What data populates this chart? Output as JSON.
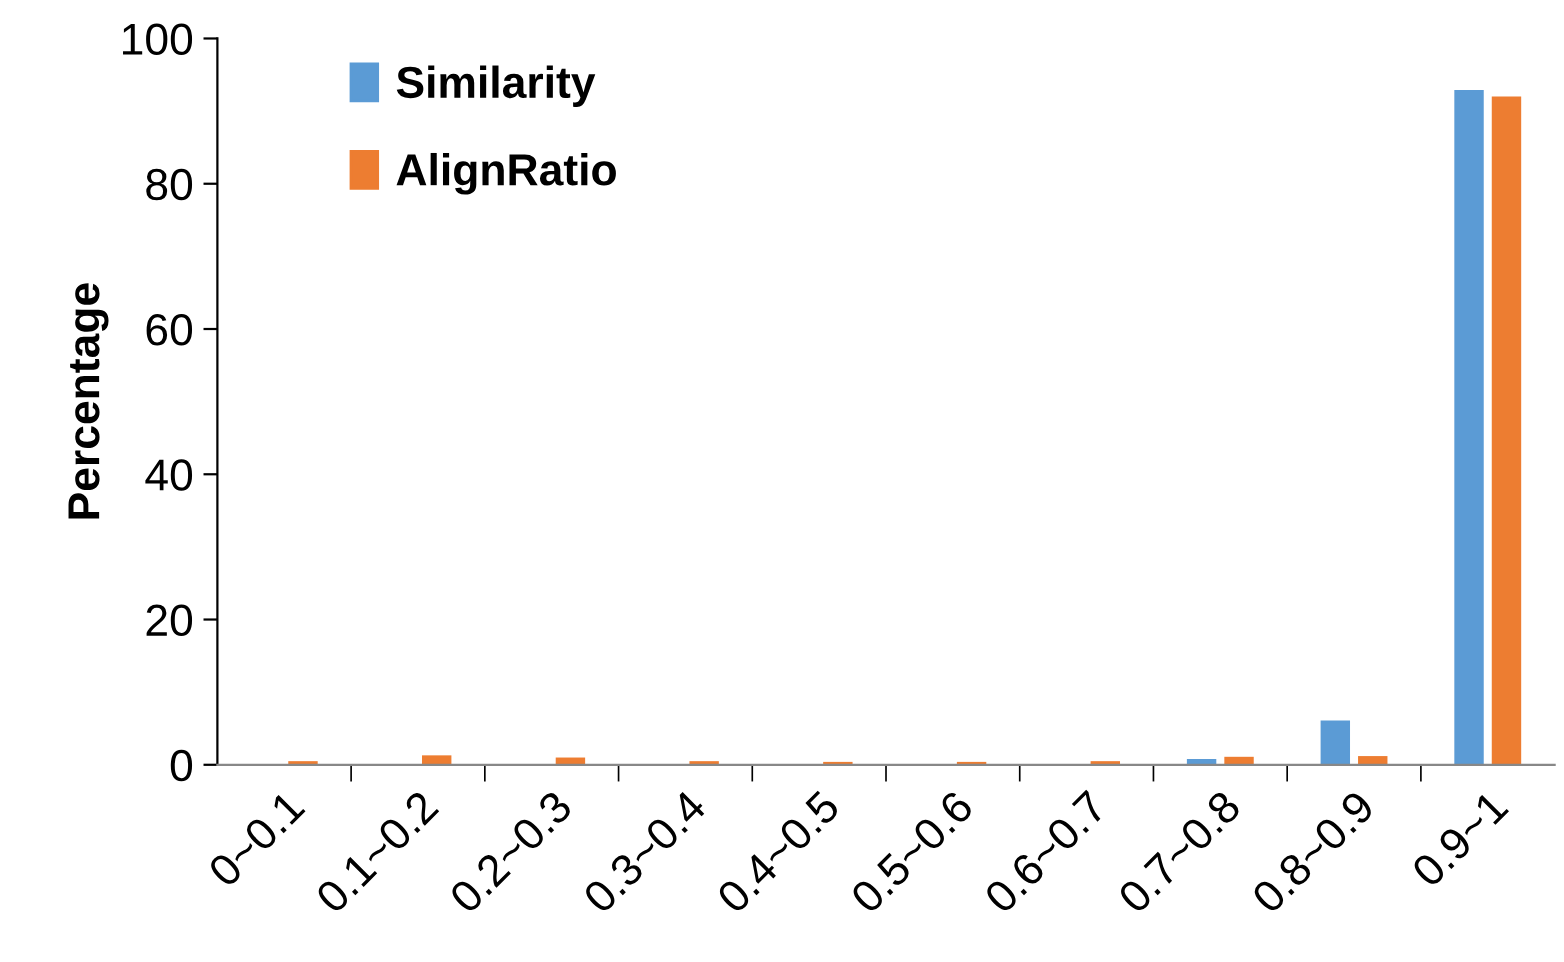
{
  "chart_data": {
    "type": "bar",
    "ylabel": "Percentage",
    "categories": [
      "0~0.1",
      "0.1~0.2",
      "0.2~0.3",
      "0.3~0.4",
      "0.4~0.5",
      "0.5~0.6",
      "0.6~0.7",
      "0.7~0.8",
      "0.8~0.9",
      "0.9~1"
    ],
    "series": [
      {
        "name": "Similarity",
        "color": "#5b9bd5",
        "values": [
          0,
          0,
          0,
          0,
          0,
          0,
          0,
          0.8,
          6.1,
          92.9
        ]
      },
      {
        "name": "AlignRatio",
        "color": "#ed7d31",
        "values": [
          0.5,
          1.3,
          1.0,
          0.5,
          0.4,
          0.4,
          0.5,
          1.1,
          1.2,
          92.0
        ]
      }
    ],
    "ylim": [
      0,
      100
    ],
    "yticks": [
      0,
      20,
      40,
      60,
      80,
      100
    ],
    "grid": false,
    "legend": "top left"
  }
}
